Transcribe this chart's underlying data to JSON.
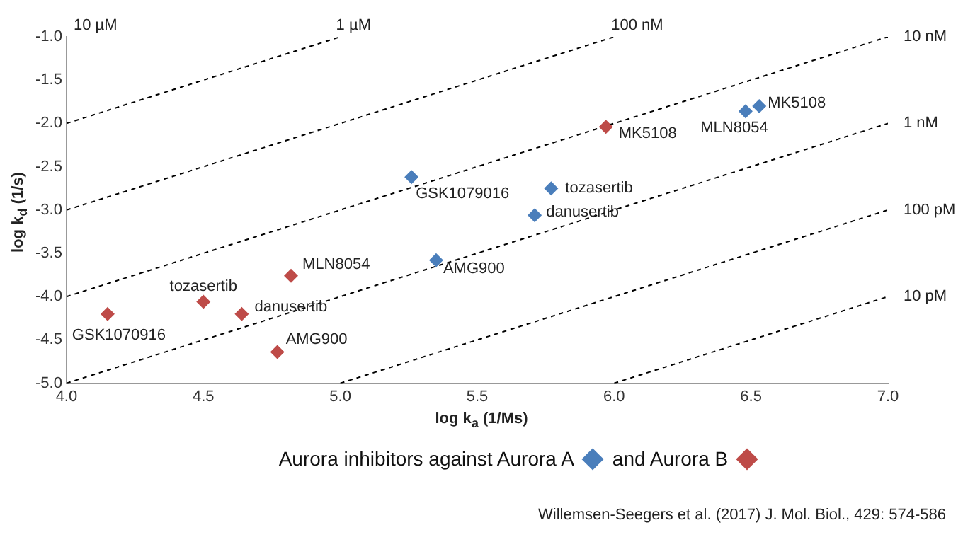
{
  "chart_data": {
    "type": "scatter",
    "xlabel": "log k$_{a}$ (1/Ms)",
    "ylabel": "log k$_{d}$ (1/s)",
    "xlim": [
      4,
      7
    ],
    "ylim": [
      -5,
      -1
    ],
    "xticks": [
      {
        "value": 4,
        "label": "4.0"
      },
      {
        "value": 4.5,
        "label": "4.5"
      },
      {
        "value": 5,
        "label": "5.0"
      },
      {
        "value": 5.5,
        "label": "5.5"
      },
      {
        "value": 6,
        "label": "6.0"
      },
      {
        "value": 6.5,
        "label": "6.5"
      },
      {
        "value": 7,
        "label": "7.0"
      }
    ],
    "yticks": [
      {
        "value": -1,
        "label": "-1.0"
      },
      {
        "value": -1.5,
        "label": "-1.5"
      },
      {
        "value": -2,
        "label": "-2.0"
      },
      {
        "value": -2.5,
        "label": "-2.5"
      },
      {
        "value": -3,
        "label": "-3.0"
      },
      {
        "value": -3.5,
        "label": "-3.5"
      },
      {
        "value": -4,
        "label": "-4.0"
      },
      {
        "value": -4.5,
        "label": "-4.5"
      },
      {
        "value": -5,
        "label": "-5.0"
      }
    ],
    "legend": "bottom",
    "marker": "diamond",
    "series": [
      {
        "name": "Aurora inhibitors against Aurora A",
        "color": "#4a7ebb",
        "x": [
          5.26,
          5.35,
          5.77,
          5.71,
          6.48,
          6.53
        ],
        "values": [
          -2.62,
          -3.58,
          -2.75,
          -3.06,
          -1.86,
          -1.8
        ]
      },
      {
        "name": "and Aurora B",
        "color": "#be4b48",
        "x": [
          4.15,
          4.5,
          4.64,
          4.82,
          4.77,
          5.97
        ],
        "values": [
          -4.2,
          -4.06,
          -4.2,
          -3.76,
          -4.64,
          -2.04
        ]
      },
      {
        "type": "line",
        "color": "#000000",
        "line_style": "dashed",
        "marker": "none",
        "x": [
          4,
          5
        ],
        "values": [
          -2,
          -1
        ]
      },
      {
        "type": "line",
        "color": "#000000",
        "line_style": "dashed",
        "marker": "none",
        "x": [
          4,
          6
        ],
        "values": [
          -3,
          -1
        ]
      },
      {
        "type": "line",
        "color": "#000000",
        "line_style": "dashed",
        "marker": "none",
        "x": [
          4,
          7
        ],
        "values": [
          -4,
          -1
        ]
      },
      {
        "type": "line",
        "color": "#000000",
        "line_style": "dashed",
        "marker": "none",
        "x": [
          4,
          7
        ],
        "values": [
          -5,
          -2
        ]
      },
      {
        "type": "line",
        "color": "#000000",
        "line_style": "dashed",
        "marker": "none",
        "x": [
          5,
          7
        ],
        "values": [
          -5,
          -3
        ]
      },
      {
        "type": "line",
        "color": "#000000",
        "line_style": "dashed",
        "marker": "none",
        "x": [
          6,
          7
        ],
        "values": [
          -5,
          -4
        ]
      }
    ],
    "annotations": [
      {
        "text": "GSK1070916",
        "x": 4.15,
        "y": -4.2
      },
      {
        "text": "tozasertib",
        "x": 4.5,
        "y": -4.06
      },
      {
        "text": "danusertib",
        "x": 4.64,
        "y": -4.2
      },
      {
        "text": "MLN8054",
        "x": 4.82,
        "y": -3.76
      },
      {
        "text": "AMG900",
        "x": 4.77,
        "y": -4.64
      },
      {
        "text": "MK5108",
        "x": 5.97,
        "y": -2.04
      },
      {
        "text": "GSK1079016",
        "x": 5.26,
        "y": -2.62
      },
      {
        "text": "AMG900",
        "x": 5.35,
        "y": -3.58
      },
      {
        "text": "tozasertib",
        "x": 5.77,
        "y": -2.75
      },
      {
        "text": "danusertib",
        "x": 5.71,
        "y": -3.06
      },
      {
        "text": "MLN8054",
        "x": 6.48,
        "y": -1.86
      },
      {
        "text": "MK5108",
        "x": 6.53,
        "y": -1.8
      },
      "10 µM",
      {
        "text": "1 µM",
        "x": 5,
        "y": -1
      },
      {
        "text": "100 nM",
        "x": 6,
        "y": -1
      },
      {
        "text": "10 nM",
        "x": 7,
        "y": -1
      },
      {
        "text": "1 nM",
        "x": 7,
        "y": -2
      },
      {
        "text": "100 pM",
        "x": 7,
        "y": -3
      },
      {
        "text": "10 pM",
        "x": 7,
        "y": -4
      },
      "Willemsen-Seegers et al. (2017) J. Mol. Biol., 429: 574-586"
    ]
  }
}
